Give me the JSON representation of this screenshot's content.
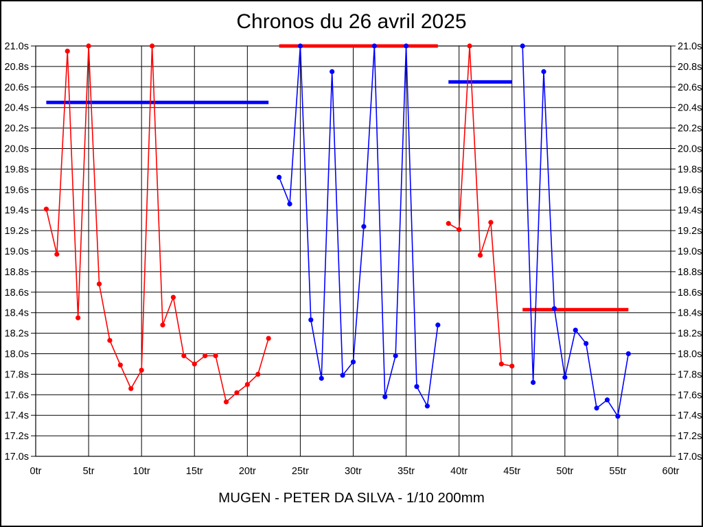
{
  "page": {
    "background": "#ffffff",
    "frame_color": "#000000"
  },
  "chart_data": {
    "type": "line",
    "title": "Chronos du 26 avril 2025",
    "caption": "MUGEN - PETER DA SILVA - 1/10 200mm",
    "x_unit": "tr",
    "y_unit": "s",
    "xlim": [
      0,
      60
    ],
    "ylim": [
      17.0,
      21.0
    ],
    "x_tick_step": 5,
    "y_tick_step": 0.2,
    "grid": true,
    "grid_color": "#000000",
    "axis_color": "#000000",
    "y_labels_both_sides": true,
    "legend_position": "none",
    "x_ticks": [
      "0tr",
      "5tr",
      "10tr",
      "15tr",
      "20tr",
      "25tr",
      "30tr",
      "35tr",
      "40tr",
      "45tr",
      "50tr",
      "55tr",
      "60tr"
    ],
    "y_ticks": [
      "17.0s",
      "17.2s",
      "17.4s",
      "17.6s",
      "17.8s",
      "18.0s",
      "18.2s",
      "18.4s",
      "18.6s",
      "18.8s",
      "19.0s",
      "19.2s",
      "19.4s",
      "19.6s",
      "19.8s",
      "20.0s",
      "20.2s",
      "20.4s",
      "20.6s",
      "20.8s",
      "21.0s"
    ],
    "colors": {
      "red": "#ff0000",
      "blue": "#0000ff"
    },
    "series": [
      {
        "name": "stint-1-red",
        "color": "#ff0000",
        "start_x": 1,
        "values": [
          19.41,
          18.97,
          20.95,
          18.35,
          21.0,
          18.68,
          18.13,
          17.89,
          17.66,
          17.84,
          21.0,
          18.28,
          18.55,
          17.98,
          17.9,
          17.98,
          17.98,
          17.53,
          17.62,
          17.7,
          17.8,
          18.15
        ]
      },
      {
        "name": "stint-2-blue",
        "color": "#0000ff",
        "start_x": 23,
        "values": [
          19.72,
          19.46,
          21.0,
          18.33,
          17.76,
          20.75,
          17.79,
          17.92,
          19.24,
          21.0,
          17.58,
          17.98,
          21.0,
          17.68,
          17.49,
          18.28
        ]
      },
      {
        "name": "stint-3-red",
        "color": "#ff0000",
        "start_x": 39,
        "values": [
          19.27,
          19.21,
          21.0,
          18.96,
          19.28,
          17.9,
          17.88
        ]
      },
      {
        "name": "stint-4-blue",
        "color": "#0000ff",
        "start_x": 46,
        "values": [
          21.0,
          17.72,
          20.75,
          18.44,
          17.77,
          18.23,
          18.1,
          17.47,
          17.55,
          17.39,
          18.0
        ]
      }
    ],
    "reference_lines": [
      {
        "color": "#0000ff",
        "value": 20.45,
        "from_x": 1,
        "to_x": 22
      },
      {
        "color": "#ff0000",
        "value": 21.0,
        "from_x": 23,
        "to_x": 38
      },
      {
        "color": "#0000ff",
        "value": 20.65,
        "from_x": 39,
        "to_x": 45
      },
      {
        "color": "#ff0000",
        "value": 18.43,
        "from_x": 46,
        "to_x": 56
      }
    ]
  }
}
